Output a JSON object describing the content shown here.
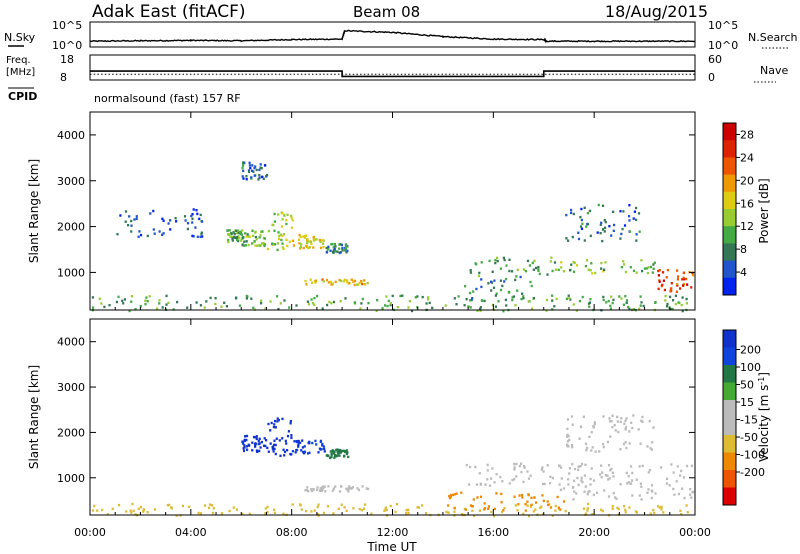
{
  "header": {
    "station": "Adak East (fitACF)",
    "beam": "Beam 08",
    "date": "18/Aug/2015"
  },
  "params_panel": {
    "nsky_label": "N.Sky",
    "nsearch_label": "N.Search",
    "freq_label_line1": "Freq.",
    "freq_label_line2": "[MHz]",
    "nave_label": "Nave",
    "cpid_label": "CPID",
    "cpid_text": "normalsound (fast) 157 RF",
    "noise_left_ticks": [
      "10^5",
      "10^0"
    ],
    "noise_right_ticks": [
      "10^5",
      "10^0"
    ],
    "freq_ticks": [
      "18",
      "8"
    ],
    "nave_ticks": [
      "60",
      "0"
    ]
  },
  "colors": {
    "power_scale": [
      "#0022ee",
      "#2255cc",
      "#337755",
      "#44aa44",
      "#99cc33",
      "#ddcc11",
      "#ee9900",
      "#ee5500",
      "#dd2200",
      "#cc0000"
    ],
    "velocity_scale": [
      "#1133cc",
      "#1144dd",
      "#227744",
      "#44aa33",
      "#bbbbbb",
      "#bbbbbb",
      "#ddbb33",
      "#ee8800",
      "#ee5500",
      "#dd0000"
    ]
  },
  "chart_data": [
    {
      "type": "line",
      "name": "noise",
      "series": [
        {
          "name": "N.Sky",
          "x": [
            0,
            2,
            4,
            6,
            8,
            10,
            10.1,
            12,
            14,
            16,
            18,
            18.1,
            20,
            22,
            24
          ],
          "values": [
            0.9,
            1.0,
            1.1,
            1.0,
            1.3,
            1.4,
            3.4,
            3.0,
            2.0,
            1.4,
            1.3,
            0.9,
            0.9,
            0.9,
            0.9
          ]
        }
      ]
    },
    {
      "type": "line",
      "name": "frequency",
      "series": [
        {
          "name": "Freq.",
          "x": [
            0,
            10,
            10,
            18,
            18,
            24
          ],
          "values": [
            11.6,
            11.6,
            9.2,
            9.2,
            11.6,
            11.6
          ]
        },
        {
          "name": "Nave",
          "x": [
            0,
            24
          ],
          "values": [
            13,
            13
          ]
        }
      ]
    },
    {
      "type": "heatmap",
      "name": "power",
      "ylabel": "Slant Range [km]",
      "colorbar_label": "Power [dB]",
      "colorbar_ticks": [
        4,
        8,
        12,
        16,
        20,
        24,
        28
      ],
      "colorbar_range": [
        0,
        30
      ],
      "xlim": [
        0,
        24
      ],
      "ylim": [
        180,
        4500
      ],
      "yticks": [
        1000,
        2000,
        3000,
        4000
      ],
      "blobs": [
        {
          "t0": 5.4,
          "t1": 6.0,
          "r0": 1650,
          "r1": 1950,
          "v": 10
        },
        {
          "t0": 6.0,
          "t1": 7.0,
          "r0": 1600,
          "r1": 1950,
          "v": 12
        },
        {
          "t0": 7.0,
          "t1": 8.0,
          "r0": 1500,
          "r1": 2350,
          "v": 14
        },
        {
          "t0": 8.0,
          "t1": 9.3,
          "r0": 1550,
          "r1": 1850,
          "v": 16
        },
        {
          "t0": 9.3,
          "t1": 10.2,
          "r0": 1450,
          "r1": 1650,
          "v": 8
        },
        {
          "t0": 6.0,
          "t1": 7.0,
          "r0": 3050,
          "r1": 3450,
          "v": 6
        },
        {
          "t0": 8.5,
          "t1": 11.0,
          "r0": 750,
          "r1": 870,
          "v": 18
        },
        {
          "t0": 15.0,
          "t1": 18.6,
          "r0": 950,
          "r1": 1350,
          "v": 10
        },
        {
          "t0": 18.6,
          "t1": 22.5,
          "r0": 1000,
          "r1": 1300,
          "v": 12
        },
        {
          "t0": 22.5,
          "t1": 23.9,
          "r0": 600,
          "r1": 1100,
          "v": 24
        },
        {
          "t0": 18.8,
          "t1": 21.8,
          "r0": 1700,
          "r1": 2500,
          "v": 6
        },
        {
          "t0": 14.8,
          "t1": 17.5,
          "r0": 350,
          "r1": 950,
          "v": 8
        },
        {
          "t0": 0.0,
          "t1": 24.0,
          "r0": 180,
          "r1": 520,
          "v": 10
        },
        {
          "t0": 1.0,
          "t1": 4.5,
          "r0": 1800,
          "r1": 2400,
          "v": 4
        }
      ]
    },
    {
      "type": "heatmap",
      "name": "velocity",
      "xlabel": "Time UT",
      "ylabel": "Slant Range [km]",
      "colorbar_label": "Velocity [m s^-1]",
      "colorbar_ticks": [
        200,
        100,
        50,
        15,
        -15,
        -50,
        -100,
        -200
      ],
      "xticks": [
        "00:00",
        "04:00",
        "08:00",
        "12:00",
        "16:00",
        "20:00",
        "00:00"
      ],
      "xlim": [
        0,
        24
      ],
      "ylim": [
        180,
        4500
      ],
      "yticks": [
        1000,
        2000,
        3000,
        4000
      ],
      "blobs": [
        {
          "t0": 6.0,
          "t1": 7.0,
          "r0": 1600,
          "r1": 1950,
          "v": 220
        },
        {
          "t0": 7.0,
          "t1": 8.0,
          "r0": 1500,
          "r1": 2350,
          "v": 230
        },
        {
          "t0": 8.0,
          "t1": 9.3,
          "r0": 1550,
          "r1": 1850,
          "v": 200
        },
        {
          "t0": 9.3,
          "t1": 10.2,
          "r0": 1450,
          "r1": 1650,
          "v": 60
        },
        {
          "t0": 8.5,
          "t1": 11.0,
          "r0": 720,
          "r1": 840,
          "v": 0
        },
        {
          "t0": 14.8,
          "t1": 18.6,
          "r0": 850,
          "r1": 1350,
          "v": 0
        },
        {
          "t0": 18.6,
          "t1": 23.9,
          "r0": 550,
          "r1": 1350,
          "v": 0
        },
        {
          "t0": 18.8,
          "t1": 22.5,
          "r0": 1600,
          "r1": 2400,
          "v": 0
        },
        {
          "t0": 0.0,
          "t1": 24.0,
          "r0": 180,
          "r1": 450,
          "v": -40
        },
        {
          "t0": 14.0,
          "t1": 19.0,
          "r0": 300,
          "r1": 700,
          "v": -60
        }
      ]
    }
  ]
}
